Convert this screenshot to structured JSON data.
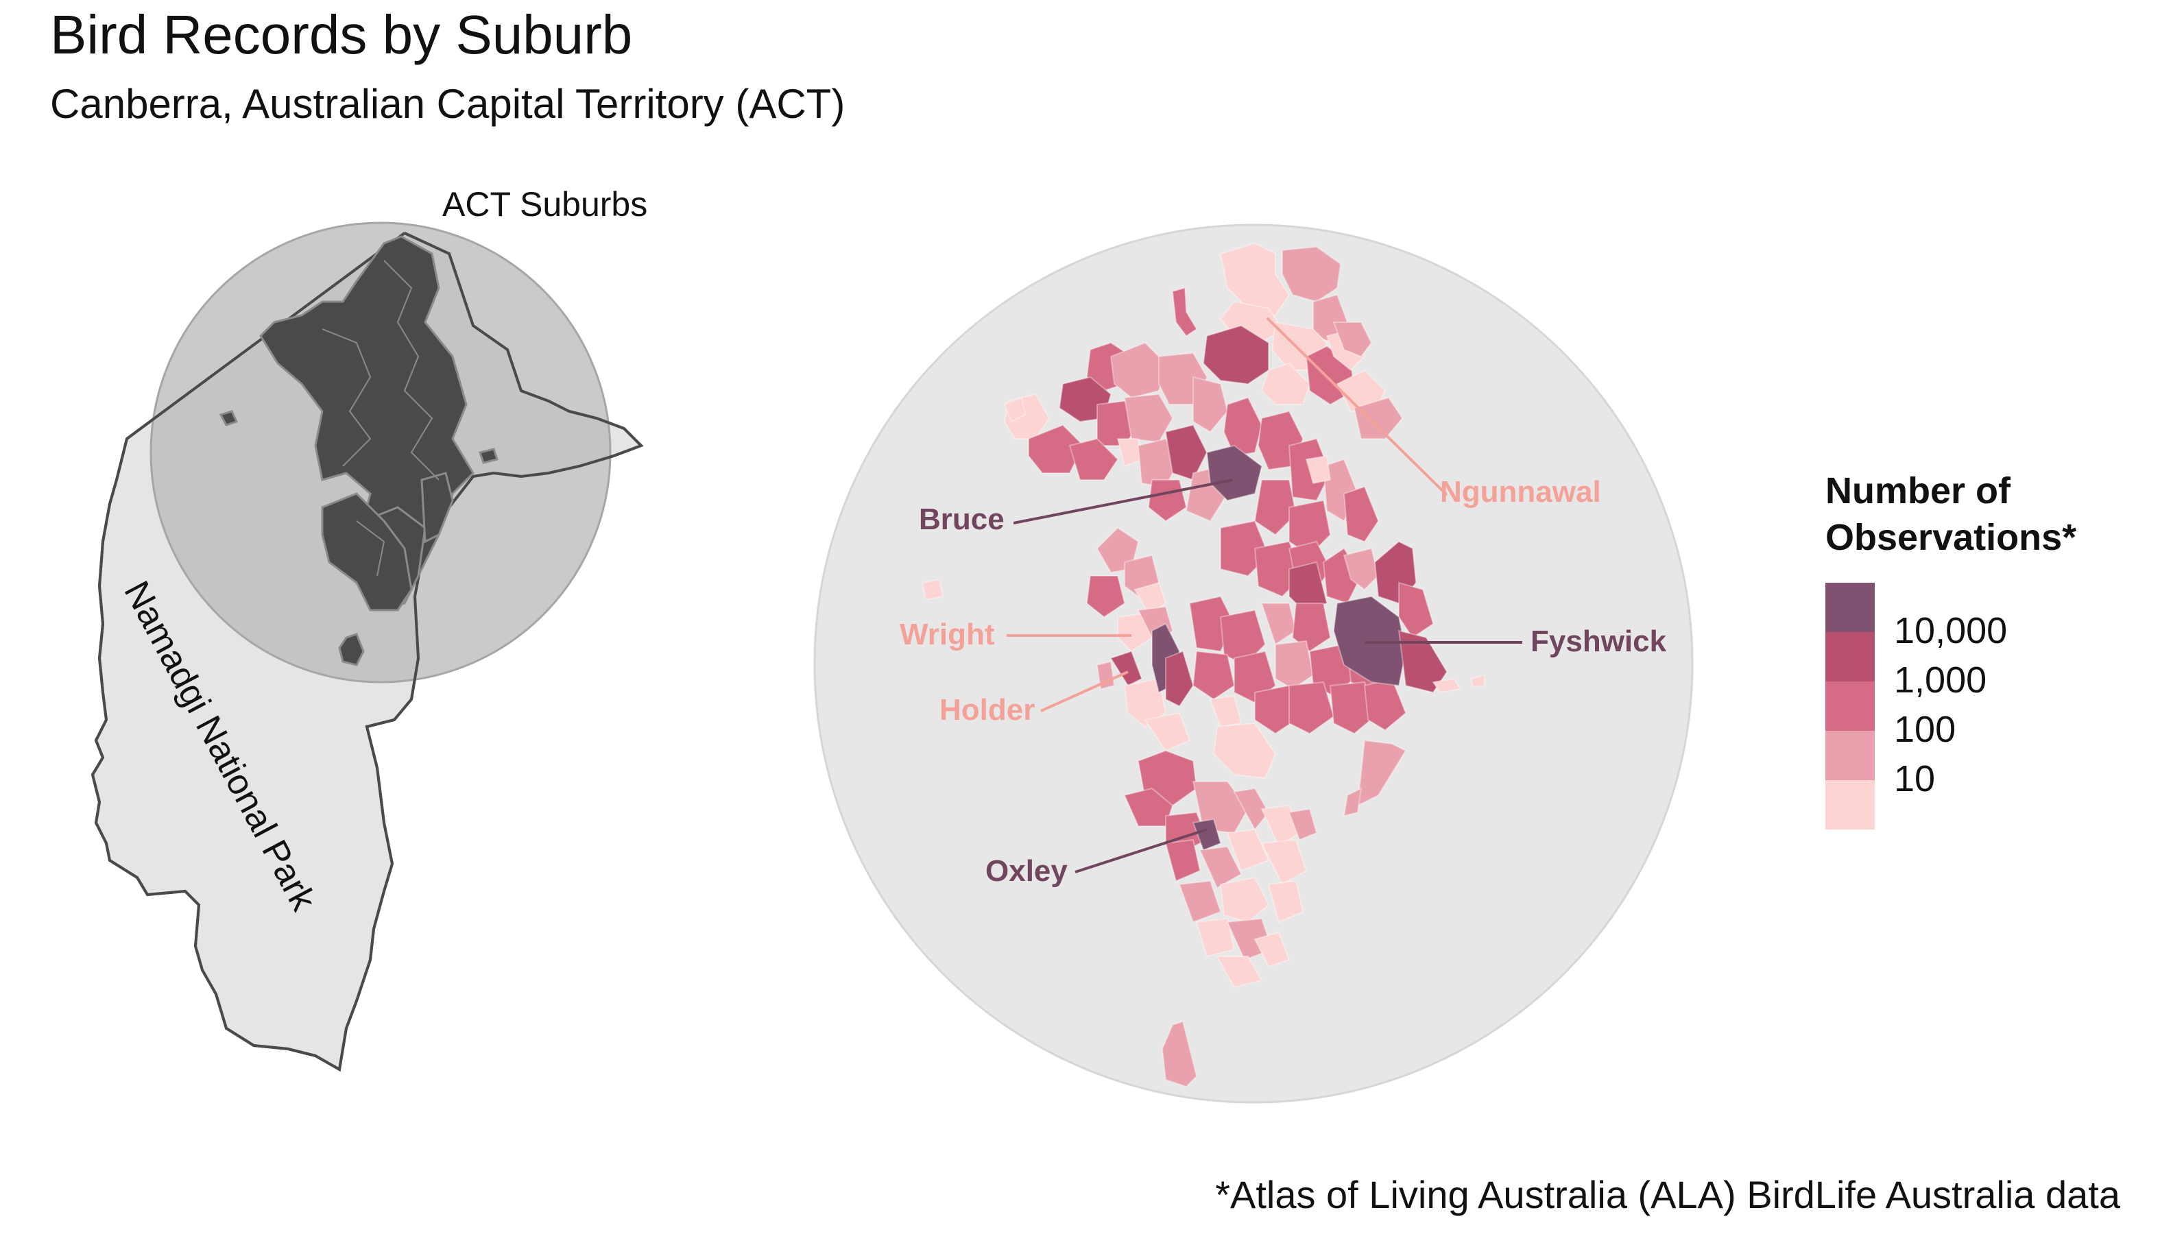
{
  "title": "Bird Records by Suburb",
  "subtitle": "Canberra, Australian Capital Territory (ACT)",
  "inset": {
    "circle_label": "ACT Suburbs",
    "park_label": "Namadgi National Park"
  },
  "legend": {
    "title_line1": "Number of",
    "title_line2": "Observations*",
    "tick_labels": [
      "10,000",
      "1,000",
      "100",
      "10"
    ],
    "colors": [
      "#7e5270",
      "#b8506f",
      "#d66b86",
      "#e9a1ad",
      "#fcd4d3"
    ]
  },
  "callouts": [
    {
      "name": "Ngunnawal",
      "level": 1,
      "color": "#f4a19a"
    },
    {
      "name": "Bruce",
      "level": 5,
      "color": "#72455f"
    },
    {
      "name": "Wright",
      "level": 1,
      "color": "#f4a19a"
    },
    {
      "name": "Fyshwick",
      "level": 5,
      "color": "#72455f"
    },
    {
      "name": "Holder",
      "level": 1,
      "color": "#f4a19a"
    },
    {
      "name": "Oxley",
      "level": 5,
      "color": "#72455f"
    }
  ],
  "footnote": "*Atlas of Living Australia (ALA) BirdLife Australia data"
}
